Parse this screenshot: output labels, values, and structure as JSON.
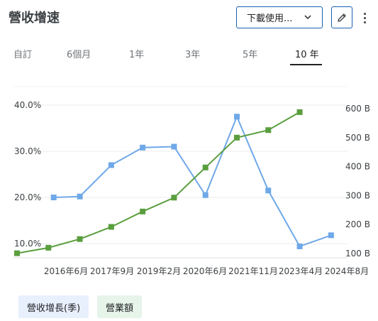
{
  "header": {
    "title": "營收增速",
    "download_label": "下載使用...",
    "icons": {
      "download": "chevron-down-icon",
      "edit": "pencil-icon",
      "more": "more-vert-icon"
    }
  },
  "tabs": [
    {
      "label": "自訂",
      "active": false
    },
    {
      "label": "6個月",
      "active": false
    },
    {
      "label": "1年",
      "active": false
    },
    {
      "label": "3年",
      "active": false
    },
    {
      "label": "5年",
      "active": false
    },
    {
      "label": "10 年",
      "active": true
    }
  ],
  "colors": {
    "growth": "#6fa8e8",
    "revenue": "#5a9e3e",
    "accent": "#1a5fb4"
  },
  "chart_data": {
    "type": "line",
    "x_tick_labels": [
      "2016年6月",
      "2017年9月",
      "2019年2月",
      "2020年6月",
      "2021年11月",
      "2023年4月",
      "2024年8月"
    ],
    "left_axis": {
      "ticks": [
        "10.0%",
        "20.0%",
        "30.0%",
        "40.0%"
      ],
      "range": [
        6,
        44
      ]
    },
    "right_axis": {
      "ticks": [
        "100 B",
        "200 B",
        "300 B",
        "400 B",
        "500 B",
        "600 B"
      ],
      "range": [
        90,
        640
      ]
    },
    "series": [
      {
        "name": "營收增長(季)",
        "axis": "left",
        "points": [
          {
            "x": "2015-04",
            "y": 20.0
          },
          {
            "x": "2016-02",
            "y": 20.2
          },
          {
            "x": "2017-02",
            "y": 27.0
          },
          {
            "x": "2018-02",
            "y": 30.8
          },
          {
            "x": "2019-02",
            "y": 31.0
          },
          {
            "x": "2020-02",
            "y": 20.5
          },
          {
            "x": "2021-02",
            "y": 37.5
          },
          {
            "x": "2022-02",
            "y": 21.5
          },
          {
            "x": "2023-02",
            "y": 9.4
          },
          {
            "x": "2024-02",
            "y": 11.8
          }
        ]
      },
      {
        "name": "營業額",
        "axis": "right",
        "points": [
          {
            "x": "2014-02",
            "y": 101
          },
          {
            "x": "2015-02",
            "y": 120
          },
          {
            "x": "2016-02",
            "y": 150
          },
          {
            "x": "2017-02",
            "y": 192
          },
          {
            "x": "2018-02",
            "y": 245
          },
          {
            "x": "2019-02",
            "y": 293
          },
          {
            "x": "2020-02",
            "y": 397
          },
          {
            "x": "2021-02",
            "y": 500
          },
          {
            "x": "2022-02",
            "y": 526
          },
          {
            "x": "2023-02",
            "y": 588
          }
        ]
      }
    ],
    "grid": true,
    "legend": "bottom-left"
  },
  "legend": [
    {
      "label": "營收增長(季)"
    },
    {
      "label": "營業額"
    }
  ]
}
